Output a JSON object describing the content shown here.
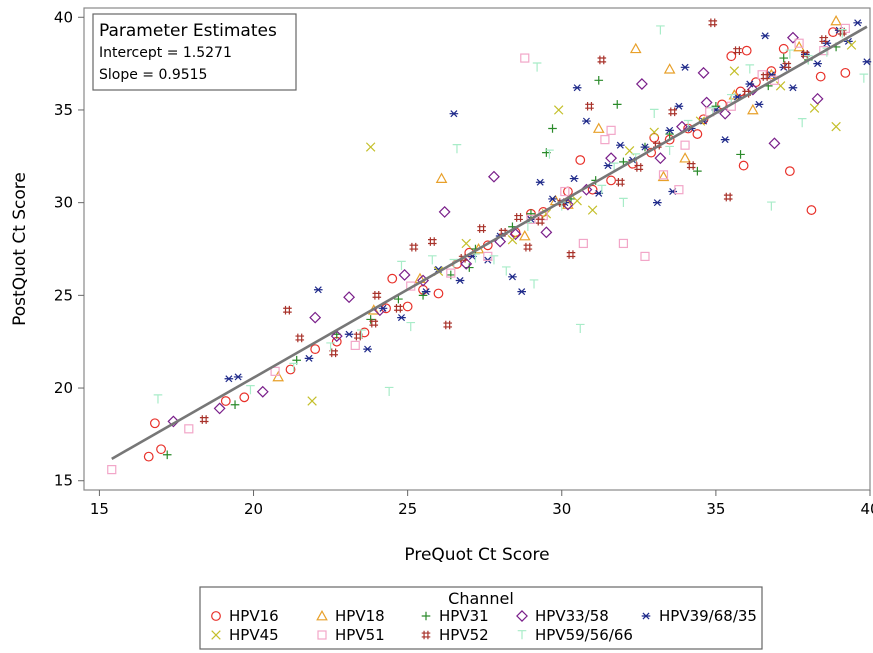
{
  "chart_data": {
    "type": "scatter",
    "xlabel": "PreQuot Ct Score",
    "ylabel": "PostQuot Ct Score",
    "xlim": [
      14.5,
      40
    ],
    "ylim": [
      14.5,
      40.5
    ],
    "xticks": [
      15,
      20,
      25,
      30,
      35,
      40
    ],
    "yticks": [
      15,
      20,
      25,
      30,
      35,
      40
    ],
    "grid": false,
    "fit_line": {
      "intercept": 1.5271,
      "slope": 0.9515,
      "x_range": [
        15.4,
        39.9
      ],
      "color": "#777777"
    },
    "inset": {
      "title": "Parameter Estimates",
      "lines": [
        "Intercept = 1.5271",
        "Slope = 0.9515"
      ]
    },
    "legend": {
      "title": "Channel",
      "placement": "bottom"
    },
    "series": [
      {
        "name": "HPV16",
        "marker": "circle",
        "color": "#e8312a",
        "points": [
          [
            16.6,
            16.3
          ],
          [
            16.8,
            18.1
          ],
          [
            17.0,
            16.7
          ],
          [
            19.1,
            19.3
          ],
          [
            19.7,
            19.5
          ],
          [
            21.2,
            21.0
          ],
          [
            22.7,
            22.5
          ],
          [
            23.6,
            23.0
          ],
          [
            24.5,
            25.9
          ],
          [
            24.3,
            24.3
          ],
          [
            25.5,
            25.3
          ],
          [
            26.0,
            25.1
          ],
          [
            27.0,
            27.3
          ],
          [
            27.6,
            27.7
          ],
          [
            28.5,
            28.4
          ],
          [
            29.0,
            29.4
          ],
          [
            30.2,
            30.6
          ],
          [
            30.6,
            32.3
          ],
          [
            31.0,
            30.7
          ],
          [
            31.6,
            31.2
          ],
          [
            32.3,
            32.1
          ],
          [
            32.9,
            32.7
          ],
          [
            33.5,
            33.4
          ],
          [
            34.1,
            34.0
          ],
          [
            34.6,
            34.5
          ],
          [
            35.2,
            35.3
          ],
          [
            35.8,
            36.0
          ],
          [
            36.3,
            36.5
          ],
          [
            36.8,
            37.1
          ],
          [
            37.4,
            31.7
          ],
          [
            38.1,
            29.6
          ],
          [
            38.4,
            36.8
          ],
          [
            39.2,
            37.0
          ],
          [
            35.5,
            37.9
          ],
          [
            36.0,
            38.2
          ],
          [
            34.4,
            33.7
          ],
          [
            33.0,
            33.5
          ],
          [
            29.4,
            29.5
          ],
          [
            26.6,
            26.7
          ],
          [
            25.0,
            24.4
          ],
          [
            22.0,
            22.1
          ],
          [
            35.9,
            32.0
          ],
          [
            37.2,
            38.3
          ],
          [
            38.8,
            39.2
          ]
        ]
      },
      {
        "name": "HPV18",
        "marker": "triangle",
        "color": "#e8a02a",
        "points": [
          [
            20.8,
            20.6
          ],
          [
            23.9,
            24.2
          ],
          [
            26.1,
            31.3
          ],
          [
            27.3,
            27.5
          ],
          [
            28.8,
            28.2
          ],
          [
            30.2,
            29.9
          ],
          [
            31.2,
            34.0
          ],
          [
            32.4,
            38.3
          ],
          [
            33.5,
            37.2
          ],
          [
            34.0,
            32.4
          ],
          [
            35.6,
            35.8
          ],
          [
            36.8,
            36.9
          ],
          [
            37.7,
            38.4
          ],
          [
            38.9,
            39.8
          ],
          [
            29.8,
            30.1
          ],
          [
            25.4,
            25.9
          ],
          [
            33.3,
            31.4
          ],
          [
            36.2,
            35.0
          ]
        ]
      },
      {
        "name": "HPV31",
        "marker": "plus",
        "color": "#2a8a2a",
        "points": [
          [
            17.2,
            16.4
          ],
          [
            19.4,
            19.1
          ],
          [
            21.4,
            21.5
          ],
          [
            22.7,
            22.9
          ],
          [
            23.8,
            23.7
          ],
          [
            24.7,
            24.8
          ],
          [
            25.5,
            25.0
          ],
          [
            26.4,
            26.1
          ],
          [
            27.2,
            27.5
          ],
          [
            28.4,
            28.7
          ],
          [
            29.0,
            29.4
          ],
          [
            29.7,
            34.0
          ],
          [
            30.3,
            30.2
          ],
          [
            31.1,
            31.2
          ],
          [
            31.2,
            36.6
          ],
          [
            32.0,
            32.2
          ],
          [
            32.7,
            33.0
          ],
          [
            33.5,
            33.7
          ],
          [
            34.4,
            31.7
          ],
          [
            35.0,
            35.2
          ],
          [
            35.8,
            32.6
          ],
          [
            36.7,
            36.3
          ],
          [
            37.2,
            37.8
          ],
          [
            38.0,
            37.7
          ],
          [
            38.9,
            38.4
          ],
          [
            29.5,
            32.7
          ],
          [
            31.8,
            35.3
          ],
          [
            27.0,
            26.5
          ]
        ]
      },
      {
        "name": "HPV33/58",
        "marker": "diamond",
        "color": "#7a1f8a",
        "points": [
          [
            17.4,
            18.2
          ],
          [
            18.9,
            18.9
          ],
          [
            20.3,
            19.8
          ],
          [
            22.0,
            23.8
          ],
          [
            22.7,
            22.8
          ],
          [
            23.1,
            24.9
          ],
          [
            24.1,
            24.2
          ],
          [
            24.9,
            26.1
          ],
          [
            25.5,
            25.8
          ],
          [
            26.2,
            29.5
          ],
          [
            26.9,
            26.7
          ],
          [
            27.8,
            31.4
          ],
          [
            28.5,
            28.3
          ],
          [
            29.5,
            28.4
          ],
          [
            30.2,
            29.9
          ],
          [
            30.8,
            30.7
          ],
          [
            31.6,
            32.4
          ],
          [
            32.6,
            36.4
          ],
          [
            33.2,
            32.4
          ],
          [
            33.9,
            34.1
          ],
          [
            34.7,
            35.4
          ],
          [
            35.3,
            34.8
          ],
          [
            36.2,
            36.1
          ],
          [
            36.9,
            33.2
          ],
          [
            37.5,
            38.9
          ],
          [
            38.3,
            35.6
          ],
          [
            34.6,
            37.0
          ],
          [
            28.0,
            27.9
          ]
        ]
      },
      {
        "name": "HPV39/68/35",
        "marker": "asterisk",
        "color": "#1f2a8a",
        "points": [
          [
            19.2,
            20.5
          ],
          [
            19.5,
            20.6
          ],
          [
            21.8,
            21.6
          ],
          [
            22.1,
            25.3
          ],
          [
            23.1,
            22.9
          ],
          [
            23.7,
            22.1
          ],
          [
            24.2,
            24.3
          ],
          [
            24.8,
            23.8
          ],
          [
            25.6,
            25.2
          ],
          [
            26.0,
            26.4
          ],
          [
            26.5,
            34.8
          ],
          [
            26.7,
            25.8
          ],
          [
            27.1,
            27.1
          ],
          [
            27.6,
            26.9
          ],
          [
            28.0,
            28.2
          ],
          [
            28.4,
            26.0
          ],
          [
            28.7,
            25.2
          ],
          [
            29.0,
            29.1
          ],
          [
            29.3,
            31.1
          ],
          [
            29.7,
            30.2
          ],
          [
            30.1,
            30.0
          ],
          [
            30.4,
            31.3
          ],
          [
            30.8,
            34.4
          ],
          [
            31.2,
            30.5
          ],
          [
            31.5,
            32.0
          ],
          [
            31.9,
            33.1
          ],
          [
            32.3,
            32.3
          ],
          [
            32.7,
            33.0
          ],
          [
            33.1,
            30.0
          ],
          [
            33.5,
            33.9
          ],
          [
            33.8,
            35.2
          ],
          [
            34.2,
            34.0
          ],
          [
            34.6,
            34.4
          ],
          [
            35.0,
            35.0
          ],
          [
            35.3,
            33.4
          ],
          [
            35.7,
            35.7
          ],
          [
            36.1,
            36.4
          ],
          [
            36.4,
            35.3
          ],
          [
            36.8,
            36.9
          ],
          [
            37.2,
            37.3
          ],
          [
            37.5,
            36.2
          ],
          [
            37.9,
            38.0
          ],
          [
            38.3,
            37.5
          ],
          [
            38.6,
            38.6
          ],
          [
            39.0,
            39.3
          ],
          [
            39.3,
            38.7
          ],
          [
            39.6,
            39.7
          ],
          [
            39.9,
            37.6
          ],
          [
            34.0,
            37.3
          ],
          [
            36.6,
            39.0
          ],
          [
            30.5,
            36.2
          ],
          [
            33.6,
            30.6
          ]
        ]
      },
      {
        "name": "HPV45",
        "marker": "x",
        "color": "#c4bf2a",
        "points": [
          [
            21.9,
            19.3
          ],
          [
            23.8,
            33.0
          ],
          [
            26.9,
            27.8
          ],
          [
            28.4,
            28.0
          ],
          [
            29.5,
            29.4
          ],
          [
            30.5,
            30.1
          ],
          [
            31.0,
            29.6
          ],
          [
            33.0,
            33.8
          ],
          [
            34.5,
            34.4
          ],
          [
            35.6,
            37.1
          ],
          [
            37.1,
            36.3
          ],
          [
            38.2,
            35.1
          ],
          [
            38.9,
            34.1
          ],
          [
            39.4,
            38.5
          ],
          [
            32.2,
            32.8
          ],
          [
            26.0,
            26.3
          ],
          [
            29.9,
            35.0
          ]
        ]
      },
      {
        "name": "HPV51",
        "marker": "square",
        "color": "#f2a6c8",
        "points": [
          [
            15.4,
            15.6
          ],
          [
            17.9,
            17.8
          ],
          [
            20.7,
            20.9
          ],
          [
            23.3,
            22.3
          ],
          [
            25.1,
            25.5
          ],
          [
            26.4,
            26.2
          ],
          [
            27.6,
            27.1
          ],
          [
            28.8,
            37.8
          ],
          [
            29.4,
            29.3
          ],
          [
            30.1,
            30.6
          ],
          [
            30.7,
            27.8
          ],
          [
            31.4,
            33.4
          ],
          [
            32.0,
            27.8
          ],
          [
            32.7,
            27.1
          ],
          [
            33.3,
            31.5
          ],
          [
            34.0,
            33.1
          ],
          [
            34.8,
            34.9
          ],
          [
            35.5,
            35.2
          ],
          [
            36.5,
            36.9
          ],
          [
            37.7,
            38.6
          ],
          [
            38.5,
            38.2
          ],
          [
            39.2,
            39.4
          ],
          [
            29.0,
            29.1
          ],
          [
            31.6,
            33.9
          ],
          [
            33.8,
            30.7
          ],
          [
            36.9,
            36.6
          ]
        ]
      },
      {
        "name": "HPV52",
        "marker": "hash",
        "color": "#a8322a",
        "points": [
          [
            18.4,
            18.3
          ],
          [
            21.1,
            24.2
          ],
          [
            21.5,
            22.7
          ],
          [
            22.6,
            21.9
          ],
          [
            23.4,
            22.8
          ],
          [
            23.9,
            23.5
          ],
          [
            24.7,
            24.3
          ],
          [
            25.2,
            27.6
          ],
          [
            25.8,
            27.9
          ],
          [
            26.3,
            23.4
          ],
          [
            26.8,
            27.0
          ],
          [
            27.4,
            28.6
          ],
          [
            28.1,
            28.4
          ],
          [
            28.6,
            29.2
          ],
          [
            29.3,
            29.0
          ],
          [
            30.0,
            30.0
          ],
          [
            30.3,
            27.2
          ],
          [
            30.9,
            35.2
          ],
          [
            31.3,
            37.7
          ],
          [
            31.9,
            31.1
          ],
          [
            32.5,
            31.9
          ],
          [
            33.1,
            33.1
          ],
          [
            33.6,
            34.9
          ],
          [
            34.2,
            32.0
          ],
          [
            34.9,
            39.7
          ],
          [
            35.4,
            30.3
          ],
          [
            36.0,
            35.9
          ],
          [
            36.6,
            36.8
          ],
          [
            37.3,
            37.4
          ],
          [
            37.9,
            38.0
          ],
          [
            38.5,
            38.8
          ],
          [
            39.1,
            39.2
          ],
          [
            24.0,
            25.0
          ],
          [
            28.9,
            27.6
          ],
          [
            35.7,
            38.2
          ]
        ]
      },
      {
        "name": "HPV59/56/66",
        "marker": "tee",
        "color": "#a8ecc8",
        "points": [
          [
            16.9,
            19.4
          ],
          [
            19.9,
            19.9
          ],
          [
            21.3,
            21.1
          ],
          [
            22.5,
            22.2
          ],
          [
            23.5,
            22.9
          ],
          [
            24.4,
            19.8
          ],
          [
            25.1,
            23.3
          ],
          [
            25.8,
            26.9
          ],
          [
            26.5,
            26.7
          ],
          [
            27.2,
            27.0
          ],
          [
            27.8,
            26.9
          ],
          [
            28.2,
            26.3
          ],
          [
            28.9,
            28.7
          ],
          [
            29.1,
            25.6
          ],
          [
            29.6,
            32.6
          ],
          [
            30.0,
            29.8
          ],
          [
            30.6,
            23.2
          ],
          [
            31.3,
            30.7
          ],
          [
            32.0,
            30.0
          ],
          [
            32.4,
            32.4
          ],
          [
            33.0,
            34.8
          ],
          [
            33.5,
            32.8
          ],
          [
            34.1,
            34.2
          ],
          [
            34.9,
            34.9
          ],
          [
            35.5,
            35.6
          ],
          [
            36.1,
            37.2
          ],
          [
            36.8,
            29.8
          ],
          [
            37.4,
            38.0
          ],
          [
            38.0,
            37.7
          ],
          [
            38.6,
            38.1
          ],
          [
            39.1,
            39.1
          ],
          [
            39.8,
            36.7
          ],
          [
            26.6,
            32.9
          ],
          [
            29.2,
            37.3
          ],
          [
            33.2,
            39.3
          ],
          [
            37.8,
            34.3
          ],
          [
            24.8,
            26.6
          ],
          [
            31.7,
            31.9
          ]
        ]
      }
    ]
  }
}
